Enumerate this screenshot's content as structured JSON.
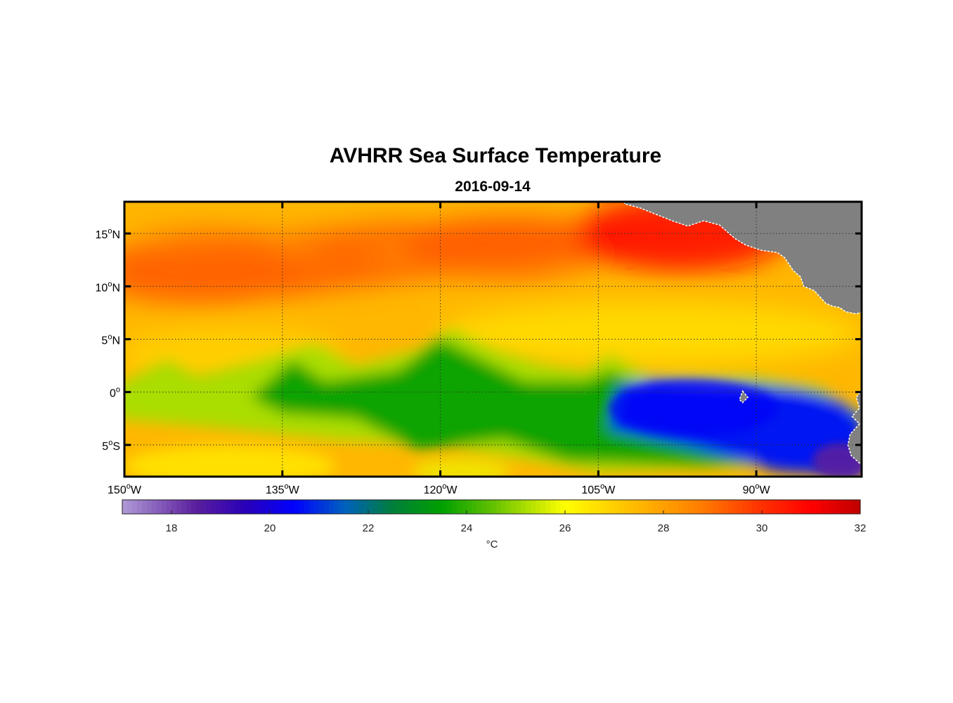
{
  "title": "AVHRR Sea Surface Temperature",
  "subtitle": "2016-09-14",
  "chart_data": {
    "type": "heatmap",
    "map": {
      "lon_range": [
        -150,
        -80
      ],
      "lat_range": [
        -8,
        18
      ],
      "lon_ticks": [
        {
          "value": -150,
          "num": "150",
          "hemi": "W"
        },
        {
          "value": -135,
          "num": "135",
          "hemi": "W"
        },
        {
          "value": -120,
          "num": "120",
          "hemi": "W"
        },
        {
          "value": -105,
          "num": "105",
          "hemi": "W"
        },
        {
          "value": -90,
          "num": "90",
          "hemi": "W"
        }
      ],
      "lat_ticks": [
        {
          "value": 15,
          "num": "15",
          "hemi": "N"
        },
        {
          "value": 10,
          "num": "10",
          "hemi": "N"
        },
        {
          "value": 5,
          "num": "5",
          "hemi": "N"
        },
        {
          "value": 0,
          "num": "0",
          "hemi": ""
        },
        {
          "value": -5,
          "num": "5",
          "hemi": "S"
        }
      ],
      "grid": true,
      "land_color": "#808080"
    },
    "colorbar": {
      "range": [
        17,
        32
      ],
      "ticks": [
        18,
        20,
        22,
        24,
        26,
        28,
        30,
        32
      ],
      "label": "°C",
      "colors": [
        "#b09ad6",
        "#5a1e9e",
        "#2a00b8",
        "#0000ff",
        "#0060c0",
        "#007f3a",
        "#00a000",
        "#60c000",
        "#ffff00",
        "#ffc000",
        "#ff8000",
        "#ff3000",
        "#ff0000",
        "#c00000"
      ],
      "stops": [
        17,
        18.5,
        19.5,
        20.5,
        21.5,
        22.5,
        23.5,
        24.5,
        26,
        27.3,
        28.7,
        30,
        31,
        32
      ]
    },
    "sst_features": {
      "background_c": 27.5,
      "north_warm_band_c": 29.3,
      "northeast_hot_c": 30.8,
      "equatorial_cool_tongue_c": 23.6,
      "eastern_cold_core_c": 20.7,
      "far_southeast_c": 18.5,
      "south_margin_c": 26.5
    }
  }
}
